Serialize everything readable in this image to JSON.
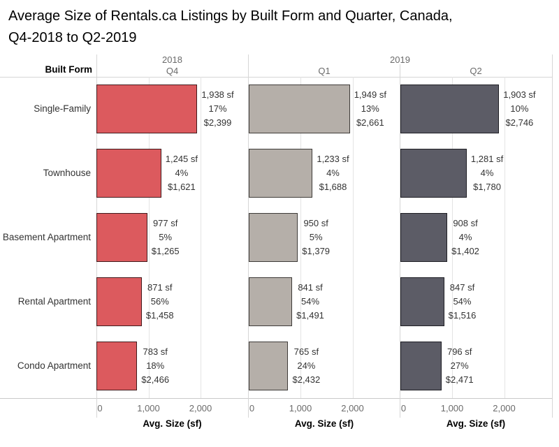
{
  "title_lines": [
    "Average Size of Rentals.ca Listings by Built Form and Quarter, Canada,",
    "Q4-2018 to Q2-2019"
  ],
  "header": {
    "built_form_label": "Built Form",
    "year_groups": [
      {
        "year": "2018",
        "quarters": [
          "Q4"
        ]
      },
      {
        "year": "2019",
        "quarters": [
          "Q1",
          "Q2"
        ]
      }
    ]
  },
  "colors": {
    "q4_2018_fill": "#DC5A5E",
    "q4_2018_border": "#421B1D",
    "q1_2019_fill": "#B5AFA9",
    "q1_2019_border": "#3E3B38",
    "q2_2019_fill": "#5C5C66",
    "q2_2019_border": "#1E1E24",
    "gridline": "#E4E4E4",
    "divider": "#D6D6D6",
    "axis_line": "#C9C9C9",
    "label_text": "#333333",
    "muted_text": "#6B6B6B"
  },
  "chart_data": {
    "type": "bar",
    "orientation": "horizontal",
    "title": "Average Size of Rentals.ca Listings by Built Form and Quarter, Canada, Q4-2018 to Q2-2019",
    "categories": [
      "Single-Family",
      "Townhouse",
      "Basement Apartment",
      "Rental Apartment",
      "Condo Apartment"
    ],
    "x_axis": {
      "label": "Avg. Size (sf)",
      "ticks": [
        "0",
        "1,000",
        "2,000"
      ],
      "tick_values": [
        0,
        1000,
        2000
      ],
      "xlim": [
        0,
        2915
      ],
      "grid": true
    },
    "series": [
      {
        "name": "2018 Q4",
        "fill": "#DC5A5E",
        "border": "#421B1D",
        "values": [
          1938,
          1245,
          977,
          871,
          783
        ],
        "labels": [
          [
            "1,938 sf",
            "17%",
            "$2,399"
          ],
          [
            "1,245 sf",
            "4%",
            "$1,621"
          ],
          [
            "977 sf",
            "5%",
            "$1,265"
          ],
          [
            "871 sf",
            "56%",
            "$1,458"
          ],
          [
            "783 sf",
            "18%",
            "$2,466"
          ]
        ]
      },
      {
        "name": "2019 Q1",
        "fill": "#B5AFA9",
        "border": "#3E3B38",
        "values": [
          1949,
          1233,
          950,
          841,
          765
        ],
        "labels": [
          [
            "1,949 sf",
            "13%",
            "$2,661"
          ],
          [
            "1,233 sf",
            "4%",
            "$1,688"
          ],
          [
            "950 sf",
            "5%",
            "$1,379"
          ],
          [
            "841 sf",
            "54%",
            "$1,491"
          ],
          [
            "765 sf",
            "24%",
            "$2,432"
          ]
        ]
      },
      {
        "name": "2019 Q2",
        "fill": "#5C5C66",
        "border": "#1E1E24",
        "values": [
          1903,
          1281,
          908,
          847,
          796
        ],
        "labels": [
          [
            "1,903 sf",
            "10%",
            "$2,746"
          ],
          [
            "1,281 sf",
            "4%",
            "$1,780"
          ],
          [
            "908 sf",
            "4%",
            "$1,402"
          ],
          [
            "847 sf",
            "54%",
            "$1,516"
          ],
          [
            "796 sf",
            "27%",
            "$2,471"
          ]
        ]
      }
    ]
  }
}
